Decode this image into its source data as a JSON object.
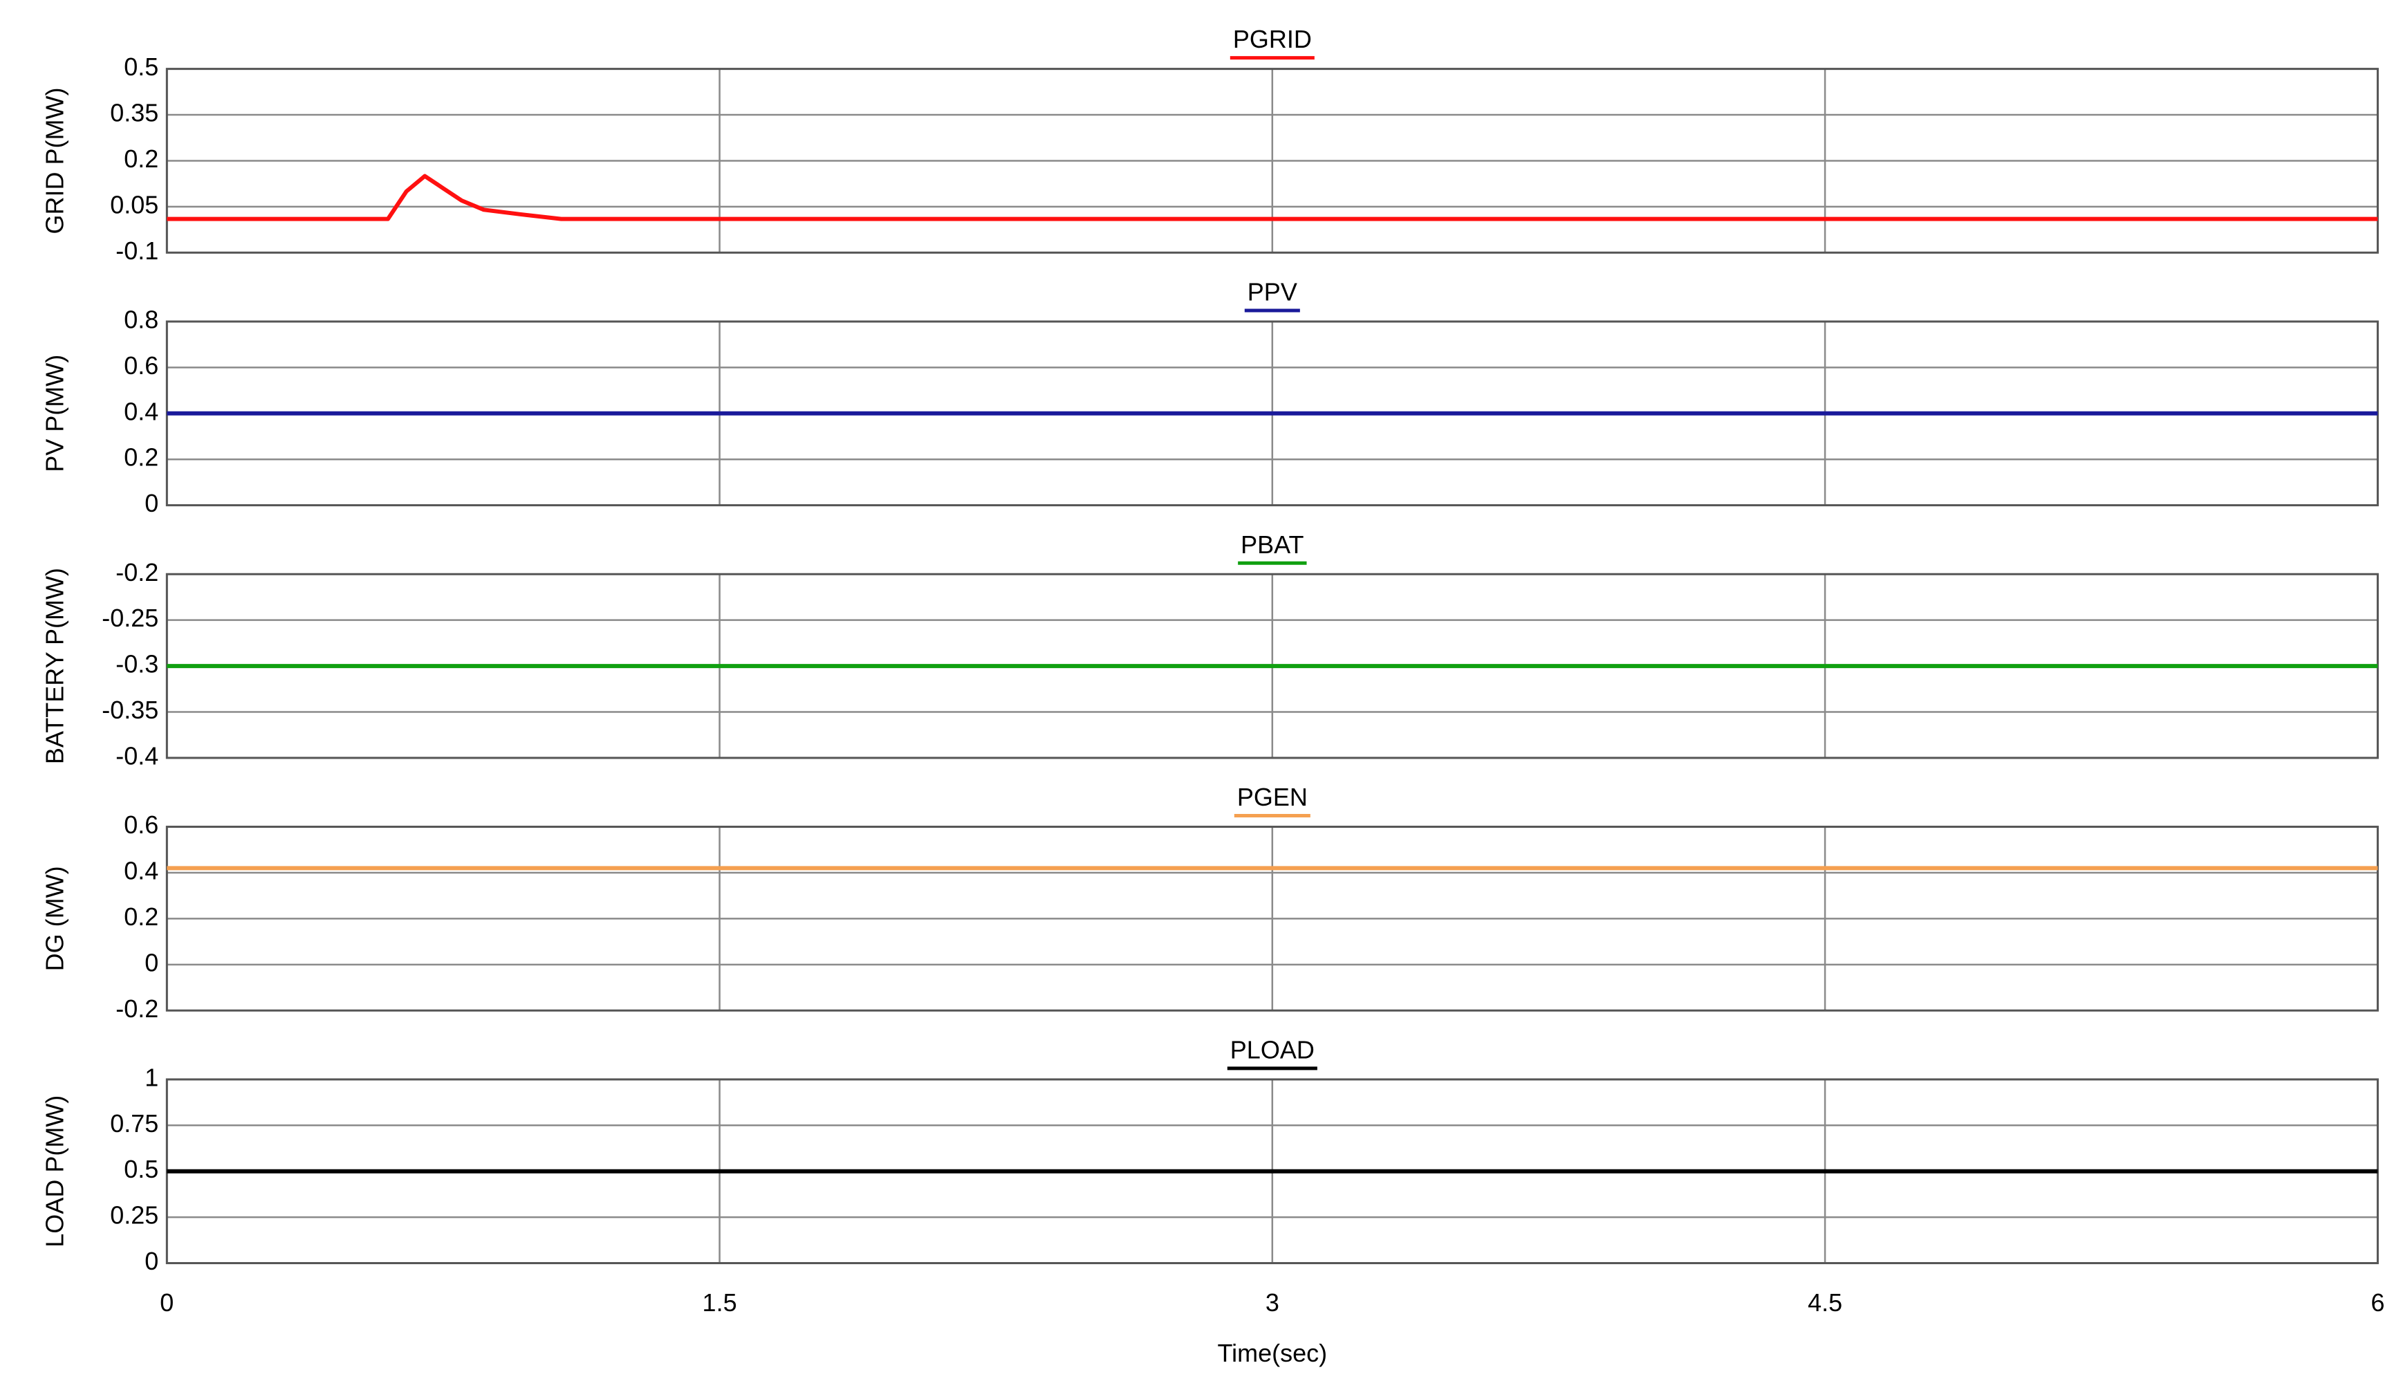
{
  "chart_data": [
    {
      "type": "line",
      "title": "PGRID",
      "ylabel": "GRID P(MW)",
      "x": [
        0,
        0.6,
        0.65,
        0.7,
        0.75,
        0.8,
        0.86,
        0.96,
        1.07,
        6
      ],
      "series": [
        {
          "color": "#ff1010",
          "values": [
            0.01,
            0.01,
            0.1,
            0.15,
            0.11,
            0.07,
            0.04,
            0.025,
            0.01,
            0.01
          ]
        }
      ],
      "xlim": [
        0,
        6
      ],
      "xticks": [
        0,
        1.5,
        3,
        4.5,
        6
      ],
      "ylim": [
        -0.1,
        0.5
      ],
      "yticks": [
        -0.1,
        0.05,
        0.2,
        0.35,
        0.5
      ],
      "grid": true
    },
    {
      "type": "line",
      "title": "PPV",
      "ylabel": "PV P(MW)",
      "x": [
        0,
        6
      ],
      "series": [
        {
          "color": "#1a1a9a",
          "values": [
            0.4,
            0.4
          ]
        }
      ],
      "xlim": [
        0,
        6
      ],
      "xticks": [
        0,
        1.5,
        3,
        4.5,
        6
      ],
      "ylim": [
        0,
        0.8
      ],
      "yticks": [
        0,
        0.2,
        0.4,
        0.6,
        0.8
      ],
      "grid": true
    },
    {
      "type": "line",
      "title": "PBAT",
      "ylabel": "BATTERY P(MW)",
      "x": [
        0,
        6
      ],
      "series": [
        {
          "color": "#10a010",
          "values": [
            -0.3,
            -0.3
          ]
        }
      ],
      "xlim": [
        0,
        6
      ],
      "xticks": [
        0,
        1.5,
        3,
        4.5,
        6
      ],
      "ylim": [
        -0.4,
        -0.2
      ],
      "yticks": [
        -0.4,
        -0.35,
        -0.3,
        -0.25,
        -0.2
      ],
      "grid": true
    },
    {
      "type": "line",
      "title": "PGEN",
      "ylabel": "DG (MW)",
      "x": [
        0,
        6
      ],
      "series": [
        {
          "color": "#f5a050",
          "values": [
            0.42,
            0.42
          ]
        }
      ],
      "xlim": [
        0,
        6
      ],
      "xticks": [
        0,
        1.5,
        3,
        4.5,
        6
      ],
      "ylim": [
        -0.2,
        0.6
      ],
      "yticks": [
        -0.2,
        0,
        0.2,
        0.4,
        0.6
      ],
      "grid": true
    },
    {
      "type": "line",
      "title": "PLOAD",
      "ylabel": "LOAD P(MW)",
      "xlabel": "Time(sec)",
      "x": [
        0,
        6
      ],
      "series": [
        {
          "color": "#000000",
          "values": [
            0.5,
            0.5
          ]
        }
      ],
      "xlim": [
        0,
        6
      ],
      "xticks": [
        0,
        1.5,
        3,
        4.5,
        6
      ],
      "ylim": [
        0,
        1
      ],
      "yticks": [
        0,
        0.25,
        0.5,
        0.75,
        1
      ],
      "grid": true
    }
  ]
}
